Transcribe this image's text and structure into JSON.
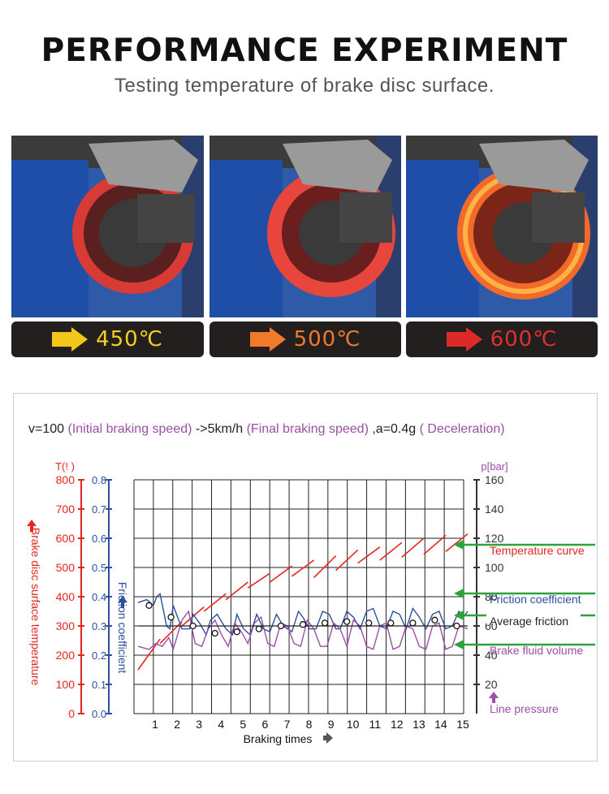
{
  "header": {
    "title": "PERFORMANCE EXPERIMENT",
    "subtitle": "Testing temperature of brake disc surface."
  },
  "photos": [
    {
      "temperature": "450℃",
      "color": "#f3d21b",
      "arrow_color": "#f2c71a"
    },
    {
      "temperature": "500℃",
      "color": "#f17a2a",
      "arrow_color": "#f0792a"
    },
    {
      "temperature": "600℃",
      "color": "#e0302b",
      "arrow_color": "#dd2a28"
    }
  ],
  "colors": {
    "temperature": "#e3261f",
    "friction": "#2c4f9e",
    "pressure": "#9b4fa6",
    "average": "#222222",
    "legend_arrow": "#2ba33a"
  },
  "chart_data": {
    "type": "line",
    "title_parts": [
      {
        "text": "v=100",
        "role": "plain"
      },
      {
        "text": "(Initial braking speed)",
        "role": "accent"
      },
      {
        "text": "->5km/h",
        "role": "plain"
      },
      {
        "text": "(Final braking speed)",
        "role": "accent"
      },
      {
        "text": ",a=0.4g",
        "role": "plain"
      },
      {
        "text": "( Deceleration)",
        "role": "accent"
      }
    ],
    "xlabel": "Braking times",
    "x_ticks": [
      1,
      2,
      3,
      4,
      5,
      6,
      7,
      8,
      9,
      10,
      11,
      12,
      13,
      14,
      15
    ],
    "y_left_temperature": {
      "unit_label": "T(! )",
      "axis_label": "Brake disc surface temperature",
      "ticks": [
        0,
        100,
        200,
        300,
        400,
        500,
        600,
        700,
        800
      ],
      "range": [
        0,
        800
      ]
    },
    "y_left_friction": {
      "axis_label": "Friction coefficient",
      "ticks": [
        "0.0",
        "0.1",
        "0.2",
        "0.3",
        "0.4",
        "0.5",
        "0.6",
        "0.7",
        "0.8"
      ],
      "range": [
        0,
        0.8
      ]
    },
    "y_right_pressure": {
      "unit_label": "p[bar]",
      "ticks": [
        20,
        40,
        60,
        80,
        100,
        120,
        140,
        160
      ],
      "range": [
        0,
        160
      ]
    },
    "series": [
      {
        "name": "Temperature curve",
        "axis": "temperature",
        "segments": [
          {
            "x": [
              0,
              1
            ],
            "y": [
              150,
              255
            ]
          },
          {
            "x": [
              1,
              2
            ],
            "y": [
              240,
              315
            ]
          },
          {
            "x": [
              2,
              3
            ],
            "y": [
              300,
              365
            ]
          },
          {
            "x": [
              3,
              4
            ],
            "y": [
              350,
              410
            ]
          },
          {
            "x": [
              4,
              5
            ],
            "y": [
              390,
              450
            ]
          },
          {
            "x": [
              5,
              6
            ],
            "y": [
              430,
              480
            ]
          },
          {
            "x": [
              6,
              7
            ],
            "y": [
              450,
              505
            ]
          },
          {
            "x": [
              7,
              8
            ],
            "y": [
              470,
              525
            ]
          },
          {
            "x": [
              8,
              9
            ],
            "y": [
              465,
              540
            ]
          },
          {
            "x": [
              9,
              10
            ],
            "y": [
              490,
              560
            ]
          },
          {
            "x": [
              10,
              11
            ],
            "y": [
              515,
              570
            ]
          },
          {
            "x": [
              11,
              12
            ],
            "y": [
              525,
              585
            ]
          },
          {
            "x": [
              12,
              13
            ],
            "y": [
              535,
              600
            ]
          },
          {
            "x": [
              13,
              14
            ],
            "y": [
              545,
              610
            ]
          },
          {
            "x": [
              14,
              15
            ],
            "y": [
              555,
              615
            ]
          }
        ]
      },
      {
        "name": "Friction coefficient",
        "axis": "friction",
        "x": [
          0.0,
          0.4,
          0.7,
          0.85,
          1.0,
          1.3,
          1.45,
          1.6,
          2.0,
          2.35,
          2.5,
          2.8,
          3.1,
          3.3,
          3.6,
          4.0,
          4.3,
          4.5,
          4.8,
          5.1,
          5.4,
          5.7,
          6.0,
          6.3,
          6.6,
          7.0,
          7.3,
          7.5,
          7.8,
          8.1,
          8.4,
          8.7,
          9.0,
          9.2,
          9.5,
          9.8,
          10.1,
          10.4,
          10.7,
          11.0,
          11.3,
          11.6,
          11.9,
          12.2,
          12.5,
          12.8,
          13.1,
          13.4,
          13.7,
          14.0,
          14.3,
          14.6,
          14.8,
          15.0
        ],
        "y": [
          0.38,
          0.39,
          0.37,
          0.4,
          0.41,
          0.3,
          0.29,
          0.37,
          0.29,
          0.29,
          0.34,
          0.31,
          0.27,
          0.32,
          0.34,
          0.29,
          0.27,
          0.34,
          0.29,
          0.27,
          0.34,
          0.29,
          0.28,
          0.34,
          0.3,
          0.28,
          0.35,
          0.33,
          0.29,
          0.29,
          0.35,
          0.34,
          0.29,
          0.29,
          0.35,
          0.33,
          0.29,
          0.35,
          0.36,
          0.3,
          0.29,
          0.35,
          0.34,
          0.29,
          0.36,
          0.33,
          0.29,
          0.34,
          0.35,
          0.29,
          0.3,
          0.35,
          0.33,
          0.35
        ]
      },
      {
        "name": "Brake fluid volume",
        "axis": "pressure",
        "x": [
          0.0,
          0.5,
          0.8,
          1.1,
          1.4,
          1.6,
          2.0,
          2.3,
          2.6,
          2.9,
          3.2,
          3.5,
          3.8,
          4.1,
          4.4,
          4.7,
          5.0,
          5.3,
          5.6,
          5.9,
          6.2,
          6.5,
          6.8,
          7.1,
          7.4,
          7.7,
          8.0,
          8.3,
          8.6,
          8.9,
          9.2,
          9.5,
          9.8,
          10.1,
          10.4,
          10.7,
          11.0,
          11.3,
          11.6,
          11.9,
          12.2,
          12.5,
          12.8,
          13.1,
          13.4,
          13.7,
          14.0,
          14.3,
          14.6,
          15.0
        ],
        "y": [
          46,
          44,
          48,
          46,
          52,
          44,
          64,
          70,
          48,
          46,
          58,
          64,
          54,
          46,
          62,
          56,
          48,
          62,
          66,
          48,
          46,
          62,
          60,
          48,
          46,
          64,
          58,
          46,
          46,
          62,
          58,
          46,
          64,
          60,
          46,
          44,
          60,
          62,
          44,
          46,
          60,
          58,
          46,
          44,
          60,
          62,
          44,
          46,
          60,
          58
        ]
      },
      {
        "name": "Average friction",
        "axis": "friction",
        "x": [
          0,
          15
        ],
        "y": [
          0.3,
          0.3
        ]
      },
      {
        "name": "Line pressure",
        "axis": "pressure",
        "x": [],
        "y": []
      }
    ],
    "average_markers": {
      "axis": "friction",
      "x": [
        0.5,
        1.5,
        2.5,
        3.5,
        4.5,
        5.5,
        6.5,
        7.5,
        8.5,
        9.5,
        10.5,
        11.5,
        12.5,
        13.5,
        14.5
      ],
      "y": [
        0.37,
        0.33,
        0.3,
        0.275,
        0.28,
        0.29,
        0.3,
        0.305,
        0.31,
        0.315,
        0.31,
        0.31,
        0.31,
        0.32,
        0.3
      ]
    },
    "legend": [
      {
        "label": "Temperature curve",
        "series": "temperature",
        "arrow": true
      },
      {
        "label": "Friction coefficient",
        "series": "friction",
        "arrow": true
      },
      {
        "label": "Average friction",
        "series": "average",
        "arrow": true
      },
      {
        "label": "Brake fluid volume",
        "series": "pressure",
        "arrow": true
      },
      {
        "label": "Line pressure",
        "series": "pressure",
        "arrow": false
      }
    ],
    "grid": true
  }
}
